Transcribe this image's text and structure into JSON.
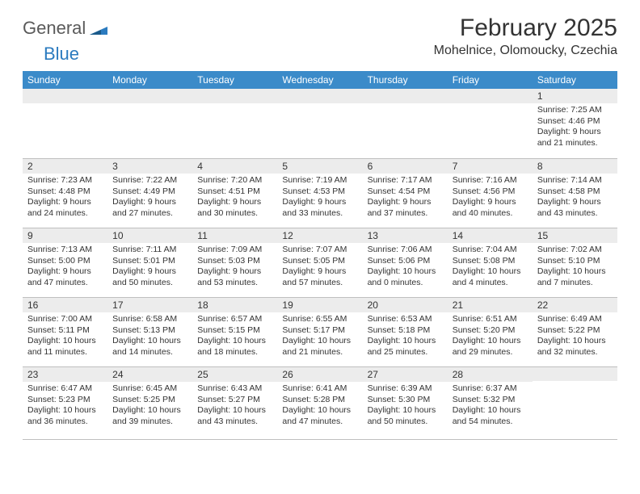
{
  "logo": {
    "general": "General",
    "blue": "Blue"
  },
  "title": "February 2025",
  "location": "Mohelnice, Olomoucky, Czechia",
  "colors": {
    "header_bg": "#3b8bc9",
    "header_text": "#ffffff",
    "daynum_bg": "#ececec",
    "border": "#bfbfbf",
    "text": "#333333",
    "logo_gray": "#5a5a5a",
    "logo_blue": "#2b7bbf"
  },
  "weekdays": [
    "Sunday",
    "Monday",
    "Tuesday",
    "Wednesday",
    "Thursday",
    "Friday",
    "Saturday"
  ],
  "weeks": [
    [
      null,
      null,
      null,
      null,
      null,
      null,
      {
        "n": "1",
        "sr": "Sunrise: 7:25 AM",
        "ss": "Sunset: 4:46 PM",
        "dl1": "Daylight: 9 hours",
        "dl2": "and 21 minutes."
      }
    ],
    [
      {
        "n": "2",
        "sr": "Sunrise: 7:23 AM",
        "ss": "Sunset: 4:48 PM",
        "dl1": "Daylight: 9 hours",
        "dl2": "and 24 minutes."
      },
      {
        "n": "3",
        "sr": "Sunrise: 7:22 AM",
        "ss": "Sunset: 4:49 PM",
        "dl1": "Daylight: 9 hours",
        "dl2": "and 27 minutes."
      },
      {
        "n": "4",
        "sr": "Sunrise: 7:20 AM",
        "ss": "Sunset: 4:51 PM",
        "dl1": "Daylight: 9 hours",
        "dl2": "and 30 minutes."
      },
      {
        "n": "5",
        "sr": "Sunrise: 7:19 AM",
        "ss": "Sunset: 4:53 PM",
        "dl1": "Daylight: 9 hours",
        "dl2": "and 33 minutes."
      },
      {
        "n": "6",
        "sr": "Sunrise: 7:17 AM",
        "ss": "Sunset: 4:54 PM",
        "dl1": "Daylight: 9 hours",
        "dl2": "and 37 minutes."
      },
      {
        "n": "7",
        "sr": "Sunrise: 7:16 AM",
        "ss": "Sunset: 4:56 PM",
        "dl1": "Daylight: 9 hours",
        "dl2": "and 40 minutes."
      },
      {
        "n": "8",
        "sr": "Sunrise: 7:14 AM",
        "ss": "Sunset: 4:58 PM",
        "dl1": "Daylight: 9 hours",
        "dl2": "and 43 minutes."
      }
    ],
    [
      {
        "n": "9",
        "sr": "Sunrise: 7:13 AM",
        "ss": "Sunset: 5:00 PM",
        "dl1": "Daylight: 9 hours",
        "dl2": "and 47 minutes."
      },
      {
        "n": "10",
        "sr": "Sunrise: 7:11 AM",
        "ss": "Sunset: 5:01 PM",
        "dl1": "Daylight: 9 hours",
        "dl2": "and 50 minutes."
      },
      {
        "n": "11",
        "sr": "Sunrise: 7:09 AM",
        "ss": "Sunset: 5:03 PM",
        "dl1": "Daylight: 9 hours",
        "dl2": "and 53 minutes."
      },
      {
        "n": "12",
        "sr": "Sunrise: 7:07 AM",
        "ss": "Sunset: 5:05 PM",
        "dl1": "Daylight: 9 hours",
        "dl2": "and 57 minutes."
      },
      {
        "n": "13",
        "sr": "Sunrise: 7:06 AM",
        "ss": "Sunset: 5:06 PM",
        "dl1": "Daylight: 10 hours",
        "dl2": "and 0 minutes."
      },
      {
        "n": "14",
        "sr": "Sunrise: 7:04 AM",
        "ss": "Sunset: 5:08 PM",
        "dl1": "Daylight: 10 hours",
        "dl2": "and 4 minutes."
      },
      {
        "n": "15",
        "sr": "Sunrise: 7:02 AM",
        "ss": "Sunset: 5:10 PM",
        "dl1": "Daylight: 10 hours",
        "dl2": "and 7 minutes."
      }
    ],
    [
      {
        "n": "16",
        "sr": "Sunrise: 7:00 AM",
        "ss": "Sunset: 5:11 PM",
        "dl1": "Daylight: 10 hours",
        "dl2": "and 11 minutes."
      },
      {
        "n": "17",
        "sr": "Sunrise: 6:58 AM",
        "ss": "Sunset: 5:13 PM",
        "dl1": "Daylight: 10 hours",
        "dl2": "and 14 minutes."
      },
      {
        "n": "18",
        "sr": "Sunrise: 6:57 AM",
        "ss": "Sunset: 5:15 PM",
        "dl1": "Daylight: 10 hours",
        "dl2": "and 18 minutes."
      },
      {
        "n": "19",
        "sr": "Sunrise: 6:55 AM",
        "ss": "Sunset: 5:17 PM",
        "dl1": "Daylight: 10 hours",
        "dl2": "and 21 minutes."
      },
      {
        "n": "20",
        "sr": "Sunrise: 6:53 AM",
        "ss": "Sunset: 5:18 PM",
        "dl1": "Daylight: 10 hours",
        "dl2": "and 25 minutes."
      },
      {
        "n": "21",
        "sr": "Sunrise: 6:51 AM",
        "ss": "Sunset: 5:20 PM",
        "dl1": "Daylight: 10 hours",
        "dl2": "and 29 minutes."
      },
      {
        "n": "22",
        "sr": "Sunrise: 6:49 AM",
        "ss": "Sunset: 5:22 PM",
        "dl1": "Daylight: 10 hours",
        "dl2": "and 32 minutes."
      }
    ],
    [
      {
        "n": "23",
        "sr": "Sunrise: 6:47 AM",
        "ss": "Sunset: 5:23 PM",
        "dl1": "Daylight: 10 hours",
        "dl2": "and 36 minutes."
      },
      {
        "n": "24",
        "sr": "Sunrise: 6:45 AM",
        "ss": "Sunset: 5:25 PM",
        "dl1": "Daylight: 10 hours",
        "dl2": "and 39 minutes."
      },
      {
        "n": "25",
        "sr": "Sunrise: 6:43 AM",
        "ss": "Sunset: 5:27 PM",
        "dl1": "Daylight: 10 hours",
        "dl2": "and 43 minutes."
      },
      {
        "n": "26",
        "sr": "Sunrise: 6:41 AM",
        "ss": "Sunset: 5:28 PM",
        "dl1": "Daylight: 10 hours",
        "dl2": "and 47 minutes."
      },
      {
        "n": "27",
        "sr": "Sunrise: 6:39 AM",
        "ss": "Sunset: 5:30 PM",
        "dl1": "Daylight: 10 hours",
        "dl2": "and 50 minutes."
      },
      {
        "n": "28",
        "sr": "Sunrise: 6:37 AM",
        "ss": "Sunset: 5:32 PM",
        "dl1": "Daylight: 10 hours",
        "dl2": "and 54 minutes."
      },
      null
    ]
  ]
}
